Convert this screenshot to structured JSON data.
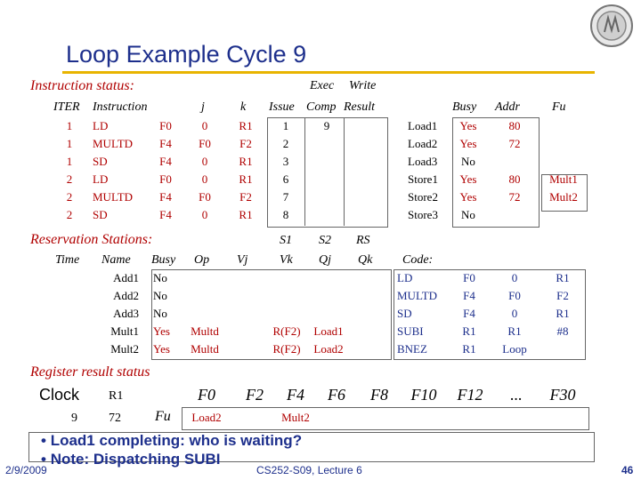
{
  "slide": {
    "title": "Loop Example Cycle 9",
    "date": "2/9/2009",
    "course": "CS252-S09, Lecture 6",
    "page": "46"
  },
  "instruction_status": {
    "section": "Instruction status:",
    "headers": {
      "exec": "Exec",
      "write": "Write",
      "iter": "ITER",
      "instruction": "Instruction",
      "j": "j",
      "k": "k",
      "issue": "Issue",
      "comp": "Comp",
      "result": "Result"
    },
    "rows": [
      {
        "iter": "1",
        "op": "LD",
        "dest": "F0",
        "j": "0",
        "k": "R1",
        "issue": "1",
        "comp": "9",
        "result": ""
      },
      {
        "iter": "1",
        "op": "MULTD",
        "dest": "F4",
        "j": "F0",
        "k": "F2",
        "issue": "2",
        "comp": "",
        "result": ""
      },
      {
        "iter": "1",
        "op": "SD",
        "dest": "F4",
        "j": "0",
        "k": "R1",
        "issue": "3",
        "comp": "",
        "result": ""
      },
      {
        "iter": "2",
        "op": "LD",
        "dest": "F0",
        "j": "0",
        "k": "R1",
        "issue": "6",
        "comp": "",
        "result": ""
      },
      {
        "iter": "2",
        "op": "MULTD",
        "dest": "F4",
        "j": "F0",
        "k": "F2",
        "issue": "7",
        "comp": "",
        "result": ""
      },
      {
        "iter": "2",
        "op": "SD",
        "dest": "F4",
        "j": "0",
        "k": "R1",
        "issue": "8",
        "comp": "",
        "result": ""
      }
    ]
  },
  "load_store": {
    "headers": {
      "busy": "Busy",
      "addr": "Addr",
      "fu": "Fu"
    },
    "rows": [
      {
        "name": "Load1",
        "busy": "Yes",
        "addr": "80",
        "fu": ""
      },
      {
        "name": "Load2",
        "busy": "Yes",
        "addr": "72",
        "fu": ""
      },
      {
        "name": "Load3",
        "busy": "No",
        "addr": "",
        "fu": ""
      },
      {
        "name": "Store1",
        "busy": "Yes",
        "addr": "80",
        "fu": "Mult1"
      },
      {
        "name": "Store2",
        "busy": "Yes",
        "addr": "72",
        "fu": "Mult2"
      },
      {
        "name": "Store3",
        "busy": "No",
        "addr": "",
        "fu": ""
      }
    ]
  },
  "reservation_stations": {
    "section": "Reservation Stations:",
    "headers": {
      "s1": "S1",
      "s2": "S2",
      "rs": "RS",
      "time": "Time",
      "name": "Name",
      "busy": "Busy",
      "op": "Op",
      "vj": "Vj",
      "vk": "Vk",
      "qj": "Qj",
      "qk": "Qk",
      "code": "Code:"
    },
    "rows": [
      {
        "name": "Add1",
        "busy": "No",
        "op": "",
        "vj": "",
        "vk": "",
        "qj": "",
        "qk": ""
      },
      {
        "name": "Add2",
        "busy": "No",
        "op": "",
        "vj": "",
        "vk": "",
        "qj": "",
        "qk": ""
      },
      {
        "name": "Add3",
        "busy": "No",
        "op": "",
        "vj": "",
        "vk": "",
        "qj": "",
        "qk": ""
      },
      {
        "name": "Mult1",
        "busy": "Yes",
        "op": "Multd",
        "vj": "",
        "vk": "R(F2)",
        "qj": "Load1",
        "qk": ""
      },
      {
        "name": "Mult2",
        "busy": "Yes",
        "op": "Multd",
        "vj": "",
        "vk": "R(F2)",
        "qj": "Load2",
        "qk": ""
      }
    ],
    "code": [
      {
        "op": "LD",
        "a": "F0",
        "b": "0",
        "c": "R1"
      },
      {
        "op": "MULTD",
        "a": "F4",
        "b": "F0",
        "c": "F2"
      },
      {
        "op": "SD",
        "a": "F4",
        "b": "0",
        "c": "R1"
      },
      {
        "op": "SUBI",
        "a": "R1",
        "b": "R1",
        "c": "#8"
      },
      {
        "op": "BNEZ",
        "a": "R1",
        "b": "Loop",
        "c": ""
      }
    ]
  },
  "register_result": {
    "section": "Register result status",
    "clock_label": "Clock",
    "r1_label": "R1",
    "clock_value": "9",
    "r1_value": "72",
    "fu_label": "Fu",
    "registers": [
      "F0",
      "F2",
      "F4",
      "F6",
      "F8",
      "F10",
      "F12",
      "...",
      "F30"
    ],
    "values": [
      "Load2",
      "",
      "Mult2",
      "",
      "",
      "",
      "",
      "",
      ""
    ]
  },
  "notes": {
    "line1": "Load1 completing: who is waiting?",
    "line2": "Note: Dispatching SUBI"
  }
}
